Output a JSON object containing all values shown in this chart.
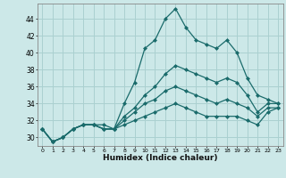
{
  "xlabel": "Humidex (Indice chaleur)",
  "background_color": "#cce8e8",
  "grid_color": "#aad0d0",
  "line_color": "#1a6b6b",
  "marker": "D",
  "markersize": 2.0,
  "linewidth": 0.9,
  "xlim": [
    -0.5,
    23.5
  ],
  "ylim": [
    29.0,
    45.8
  ],
  "yticks": [
    30,
    32,
    34,
    36,
    38,
    40,
    42,
    44
  ],
  "xticks": [
    0,
    1,
    2,
    3,
    4,
    5,
    6,
    7,
    8,
    9,
    10,
    11,
    12,
    13,
    14,
    15,
    16,
    17,
    18,
    19,
    20,
    21,
    22,
    23
  ],
  "lines": [
    [
      31.0,
      29.5,
      30.0,
      31.0,
      31.5,
      31.5,
      31.0,
      31.0,
      34.0,
      36.5,
      40.5,
      41.5,
      44.0,
      45.2,
      43.0,
      41.5,
      41.0,
      40.5,
      41.5,
      40.0,
      37.0,
      35.0,
      34.5,
      34.0
    ],
    [
      31.0,
      29.5,
      30.0,
      31.0,
      31.5,
      31.5,
      31.0,
      31.0,
      32.5,
      33.5,
      35.0,
      36.0,
      37.5,
      38.5,
      38.0,
      37.5,
      37.0,
      36.5,
      37.0,
      36.5,
      35.0,
      33.0,
      34.0,
      34.0
    ],
    [
      31.0,
      29.5,
      30.0,
      31.0,
      31.5,
      31.5,
      31.5,
      31.0,
      32.0,
      33.0,
      34.0,
      34.5,
      35.5,
      36.0,
      35.5,
      35.0,
      34.5,
      34.0,
      34.5,
      34.0,
      33.5,
      32.5,
      33.5,
      33.5
    ],
    [
      31.0,
      29.5,
      30.0,
      31.0,
      31.5,
      31.5,
      31.0,
      31.0,
      31.5,
      32.0,
      32.5,
      33.0,
      33.5,
      34.0,
      33.5,
      33.0,
      32.5,
      32.5,
      32.5,
      32.5,
      32.0,
      31.5,
      33.0,
      33.5
    ]
  ]
}
